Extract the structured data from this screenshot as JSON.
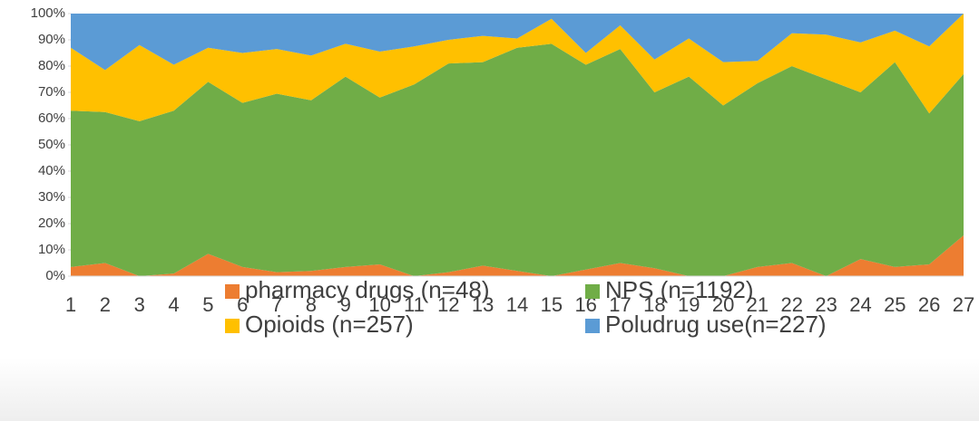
{
  "chart_data": {
    "type": "area",
    "stacked": "percent",
    "categories": [
      "1",
      "2",
      "3",
      "4",
      "5",
      "6",
      "7",
      "8",
      "9",
      "10",
      "11",
      "12",
      "13",
      "14",
      "15",
      "16",
      "17",
      "18",
      "19",
      "20",
      "21",
      "22",
      "23",
      "24",
      "25",
      "26",
      "27"
    ],
    "series": [
      {
        "name": "pharmacy drugs (n=48)",
        "color": "#ed7d31",
        "values": [
          3.5,
          5,
          0,
          1,
          8.5,
          3.5,
          1.5,
          2,
          3.5,
          4.5,
          0,
          1.5,
          4,
          2,
          0,
          2.5,
          5,
          3,
          0,
          0,
          3.5,
          5,
          0,
          6.5,
          3.5,
          4.5,
          15.5
        ]
      },
      {
        "name": "NPS (n=1192)",
        "color": "#70ad47",
        "values": [
          59.5,
          57.5,
          59,
          62,
          65.5,
          62.5,
          68,
          65,
          72.5,
          63.5,
          73,
          79.5,
          77.5,
          85,
          88.5,
          78,
          81.5,
          67,
          76,
          65,
          70,
          75,
          75,
          63.5,
          78,
          57.5,
          61.5
        ]
      },
      {
        "name": "Opioids (n=257)",
        "color": "#ffc000",
        "values": [
          24,
          16,
          29,
          17.5,
          13,
          19,
          17,
          17,
          12.5,
          17.5,
          14.5,
          9,
          10,
          3.5,
          9.5,
          4.5,
          9,
          12.5,
          14.5,
          16.5,
          8.5,
          12.5,
          17,
          19,
          12,
          25.5,
          23
        ]
      },
      {
        "name": "Poludrug use(n=227)",
        "color": "#5b9bd5",
        "values": [
          13,
          21.5,
          12,
          19.5,
          13,
          15,
          13.5,
          16,
          11.5,
          14.5,
          12.5,
          10,
          8.5,
          9.5,
          2,
          15,
          4.5,
          17.5,
          9.5,
          18.5,
          18,
          7.5,
          8,
          11,
          6.5,
          12.5,
          0
        ]
      }
    ],
    "ylim": [
      0,
      100
    ],
    "yticks": [
      {
        "value": 0,
        "label": "0%"
      },
      {
        "value": 10,
        "label": "10%"
      },
      {
        "value": 20,
        "label": "20%"
      },
      {
        "value": 30,
        "label": "30%"
      },
      {
        "value": 40,
        "label": "40%"
      },
      {
        "value": 50,
        "label": "50%"
      },
      {
        "value": 60,
        "label": "60%"
      },
      {
        "value": 70,
        "label": "70%"
      },
      {
        "value": 80,
        "label": "80%"
      },
      {
        "value": 90,
        "label": "90%"
      },
      {
        "value": 100,
        "label": "100%"
      }
    ],
    "grid": false,
    "legend": "bottom"
  }
}
